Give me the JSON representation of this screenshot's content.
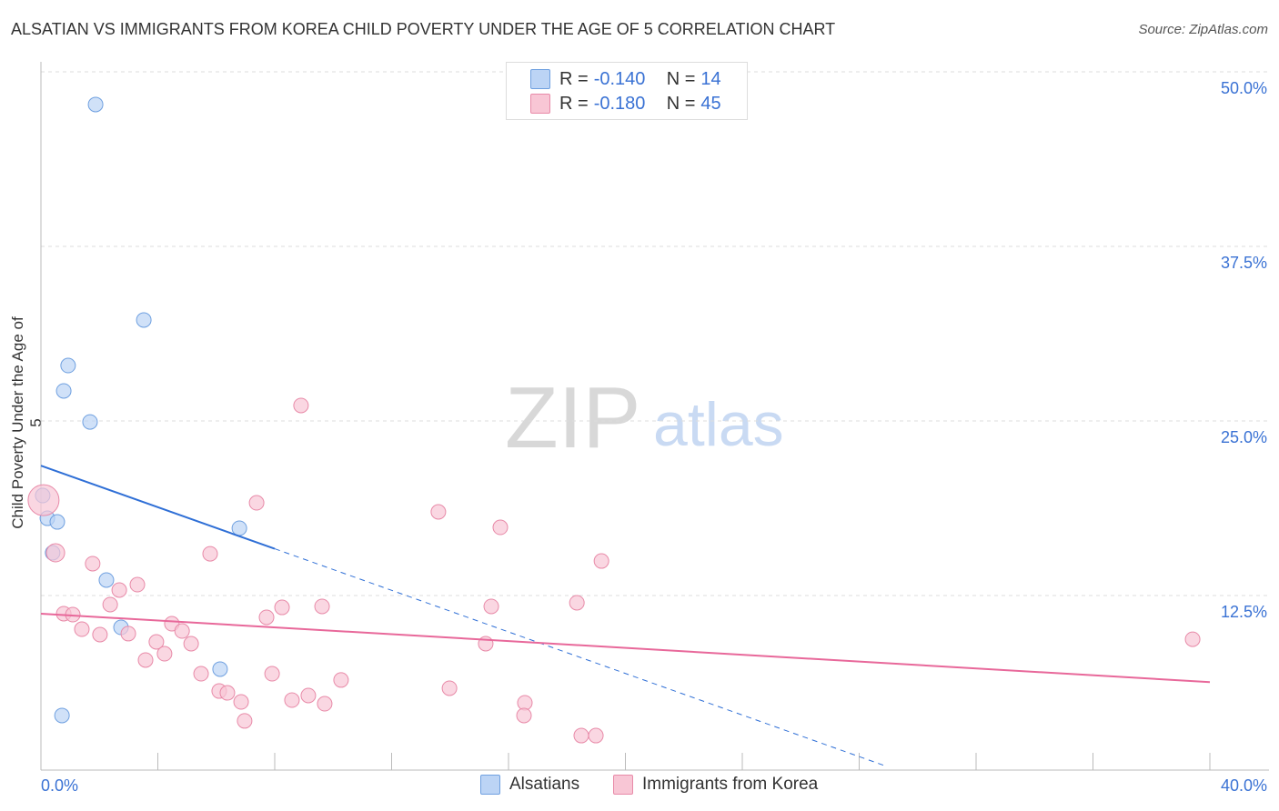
{
  "chart_data": {
    "type": "scatter",
    "title": "ALSATIAN VS IMMIGRANTS FROM KOREA CHILD POVERTY UNDER THE AGE OF 5 CORRELATION CHART",
    "source": "Source: ZipAtlas.com",
    "ylabel": "Child Poverty Under the Age of 5",
    "xlim": [
      0,
      40
    ],
    "ylim": [
      0,
      50
    ],
    "x_tick_labels": [
      "0.0%",
      "40.0%"
    ],
    "y_ticks": [
      12.5,
      25,
      37.5,
      50
    ],
    "y_tick_labels": [
      "12.5%",
      "25.0%",
      "37.5%",
      "50.0%"
    ],
    "watermark": "ZIPatlas",
    "legend": [
      {
        "r_label": "R = ",
        "r": "-0.140",
        "n_label": "N = ",
        "n": "14"
      },
      {
        "r_label": "R = ",
        "r": "-0.180",
        "n_label": "N = ",
        "n": "45"
      }
    ],
    "series": [
      {
        "name": "Alsatians",
        "color": "#6fa0e0",
        "fill": "#bcd4f5",
        "trend_color": "#2f6fd6",
        "trend": {
          "x0": 0,
          "y0": 21.8,
          "x_solid_end": 8,
          "x_end": 28.95,
          "y_end": 0.26
        },
        "points": [
          [
            1.87,
            47.66
          ],
          [
            3.52,
            32.23
          ],
          [
            0.93,
            28.97
          ],
          [
            0.78,
            27.15
          ],
          [
            1.68,
            24.93
          ],
          [
            0.06,
            19.66
          ],
          [
            0.22,
            18.03
          ],
          [
            0.56,
            17.77
          ],
          [
            6.79,
            17.32
          ],
          [
            0.4,
            15.56
          ],
          [
            2.24,
            13.61
          ],
          [
            2.74,
            10.22
          ],
          [
            6.13,
            7.23
          ],
          [
            0.72,
            3.91
          ]
        ]
      },
      {
        "name": "Immigrants from Korea",
        "color": "#e88aa8",
        "fill": "#f8c6d5",
        "trend_color": "#e8689a",
        "trend": {
          "x0": 0,
          "y0": 11.2,
          "x_end": 40,
          "y_end": 6.3
        },
        "points": [
          [
            0.09,
            19.33
          ],
          [
            8.9,
            26.11
          ],
          [
            7.38,
            19.14
          ],
          [
            13.6,
            18.49
          ],
          [
            15.72,
            17.38
          ],
          [
            19.18,
            14.97
          ],
          [
            0.5,
            15.56
          ],
          [
            5.79,
            15.49
          ],
          [
            1.77,
            14.78
          ],
          [
            3.3,
            13.28
          ],
          [
            2.68,
            12.89
          ],
          [
            2.37,
            11.85
          ],
          [
            8.25,
            11.65
          ],
          [
            9.62,
            11.72
          ],
          [
            15.41,
            11.72
          ],
          [
            18.34,
            11.98
          ],
          [
            0.78,
            11.2
          ],
          [
            1.09,
            11.13
          ],
          [
            7.72,
            10.94
          ],
          [
            4.48,
            10.48
          ],
          [
            1.4,
            10.09
          ],
          [
            4.83,
            9.96
          ],
          [
            2.02,
            9.7
          ],
          [
            2.99,
            9.77
          ],
          [
            3.95,
            9.18
          ],
          [
            5.14,
            9.05
          ],
          [
            4.23,
            8.33
          ],
          [
            3.58,
            7.88
          ],
          [
            15.22,
            9.05
          ],
          [
            39.41,
            9.37
          ],
          [
            5.48,
            6.9
          ],
          [
            7.91,
            6.9
          ],
          [
            10.27,
            6.45
          ],
          [
            6.1,
            5.66
          ],
          [
            6.38,
            5.53
          ],
          [
            13.98,
            5.86
          ],
          [
            9.15,
            5.34
          ],
          [
            6.85,
            4.88
          ],
          [
            8.59,
            5.01
          ],
          [
            9.71,
            4.75
          ],
          [
            16.56,
            4.82
          ],
          [
            16.53,
            3.91
          ],
          [
            6.97,
            3.52
          ],
          [
            18.49,
            2.47
          ],
          [
            18.99,
            2.47
          ]
        ]
      }
    ]
  }
}
